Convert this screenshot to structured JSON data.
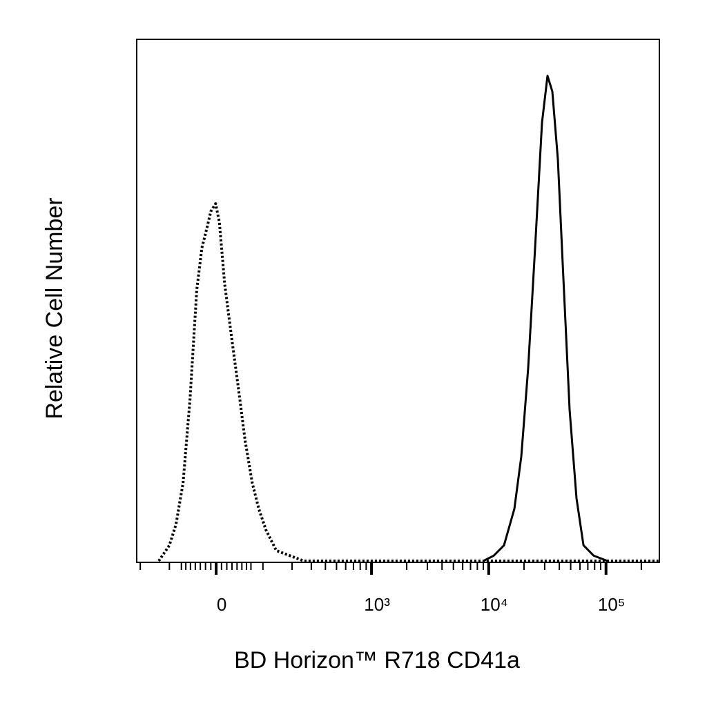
{
  "chart_data": {
    "type": "histogram-overlay",
    "x_label": "BD Horizon™ R718 CD41a",
    "y_label": "Relative Cell Number",
    "xscale": "biexponential",
    "xlim": [
      -216,
      285000
    ],
    "ylim": [
      0,
      100
    ],
    "xticks": [
      0,
      {
        "value": 1000,
        "label": "10³"
      },
      {
        "value": 10000,
        "label": "10⁴"
      },
      {
        "value": 100000,
        "label": "10⁵"
      }
    ],
    "xminorticks": [
      -200,
      -100,
      -70,
      -60,
      -50,
      -40,
      -30,
      -20,
      -10,
      10,
      20,
      30,
      40,
      50,
      60,
      70,
      100,
      200,
      300,
      400,
      500,
      600,
      700,
      800,
      900,
      2000,
      3000,
      4000,
      5000,
      6000,
      7000,
      8000,
      9000,
      20000,
      30000,
      40000,
      50000,
      60000,
      70000,
      80000,
      90000,
      200000
    ],
    "series": [
      {
        "color": "#000000",
        "dash": "dotted",
        "x": [
          -131,
          -100,
          -83,
          -66,
          -51,
          -37,
          -27,
          -17,
          -10,
          -1,
          6,
          16,
          29,
          43,
          57,
          73,
          89,
          108,
          140,
          191,
          257,
          1000,
          10000,
          100000,
          280000
        ],
        "values": [
          0,
          3,
          7,
          15,
          31,
          52,
          60,
          64,
          67,
          68.5,
          65,
          53,
          43,
          33,
          23,
          15,
          10,
          6,
          2,
          1,
          0,
          0,
          0,
          0,
          0
        ]
      },
      {
        "color": "#000000",
        "dash": "solid",
        "x": [
          9000,
          11020,
          13500,
          16560,
          18950,
          21700,
          24860,
          28470,
          31730,
          34890,
          38860,
          42750,
          48950,
          56070,
          64230,
          78700,
          103200
        ],
        "values": [
          0,
          1,
          3,
          10,
          20,
          37,
          60,
          84,
          93,
          90,
          77,
          57,
          29,
          12,
          3,
          1,
          0
        ]
      }
    ]
  }
}
